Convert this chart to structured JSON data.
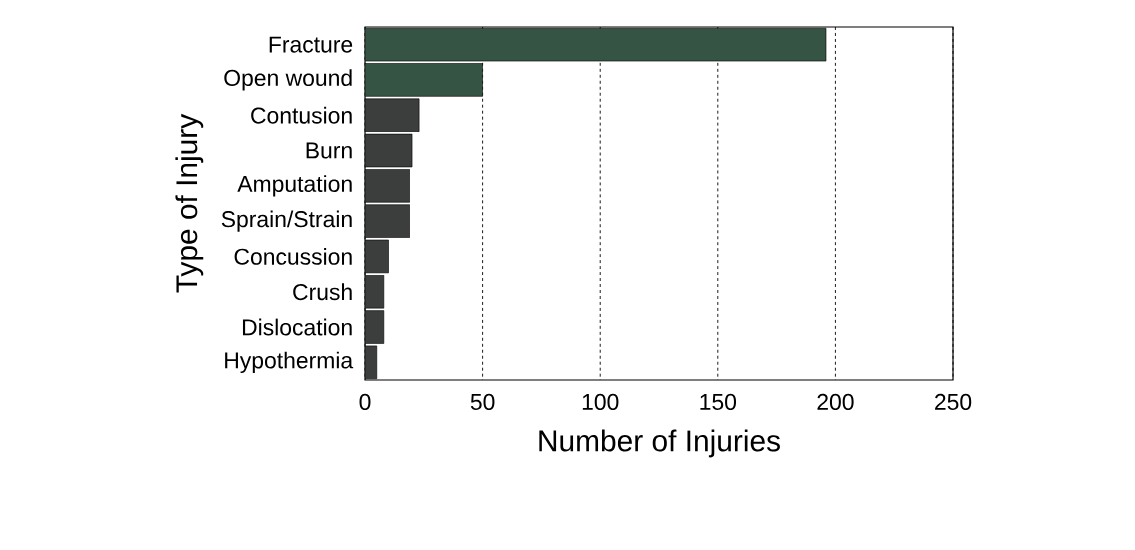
{
  "chart_data": {
    "type": "bar",
    "orientation": "horizontal",
    "xlabel": "Number of Injuries",
    "ylabel": "Type of Injury",
    "categories": [
      "Fracture",
      "Open wound",
      "Contusion",
      "Burn",
      "Amputation",
      "Sprain/Strain",
      "Concussion",
      "Crush",
      "Dislocation",
      "Hypothermia"
    ],
    "values": [
      196,
      50,
      23,
      20,
      19,
      19,
      10,
      8,
      8,
      5
    ],
    "colors": [
      "#365443",
      "#365443",
      "#3b3e3d",
      "#3b3e3d",
      "#3b3e3d",
      "#3b3e3d",
      "#3b3e3d",
      "#3b3e3d",
      "#3b3e3d",
      "#3b3e3d"
    ],
    "xlim": [
      0,
      250
    ],
    "xticks": [
      0,
      50,
      100,
      150,
      200,
      250
    ],
    "grid": "x"
  }
}
